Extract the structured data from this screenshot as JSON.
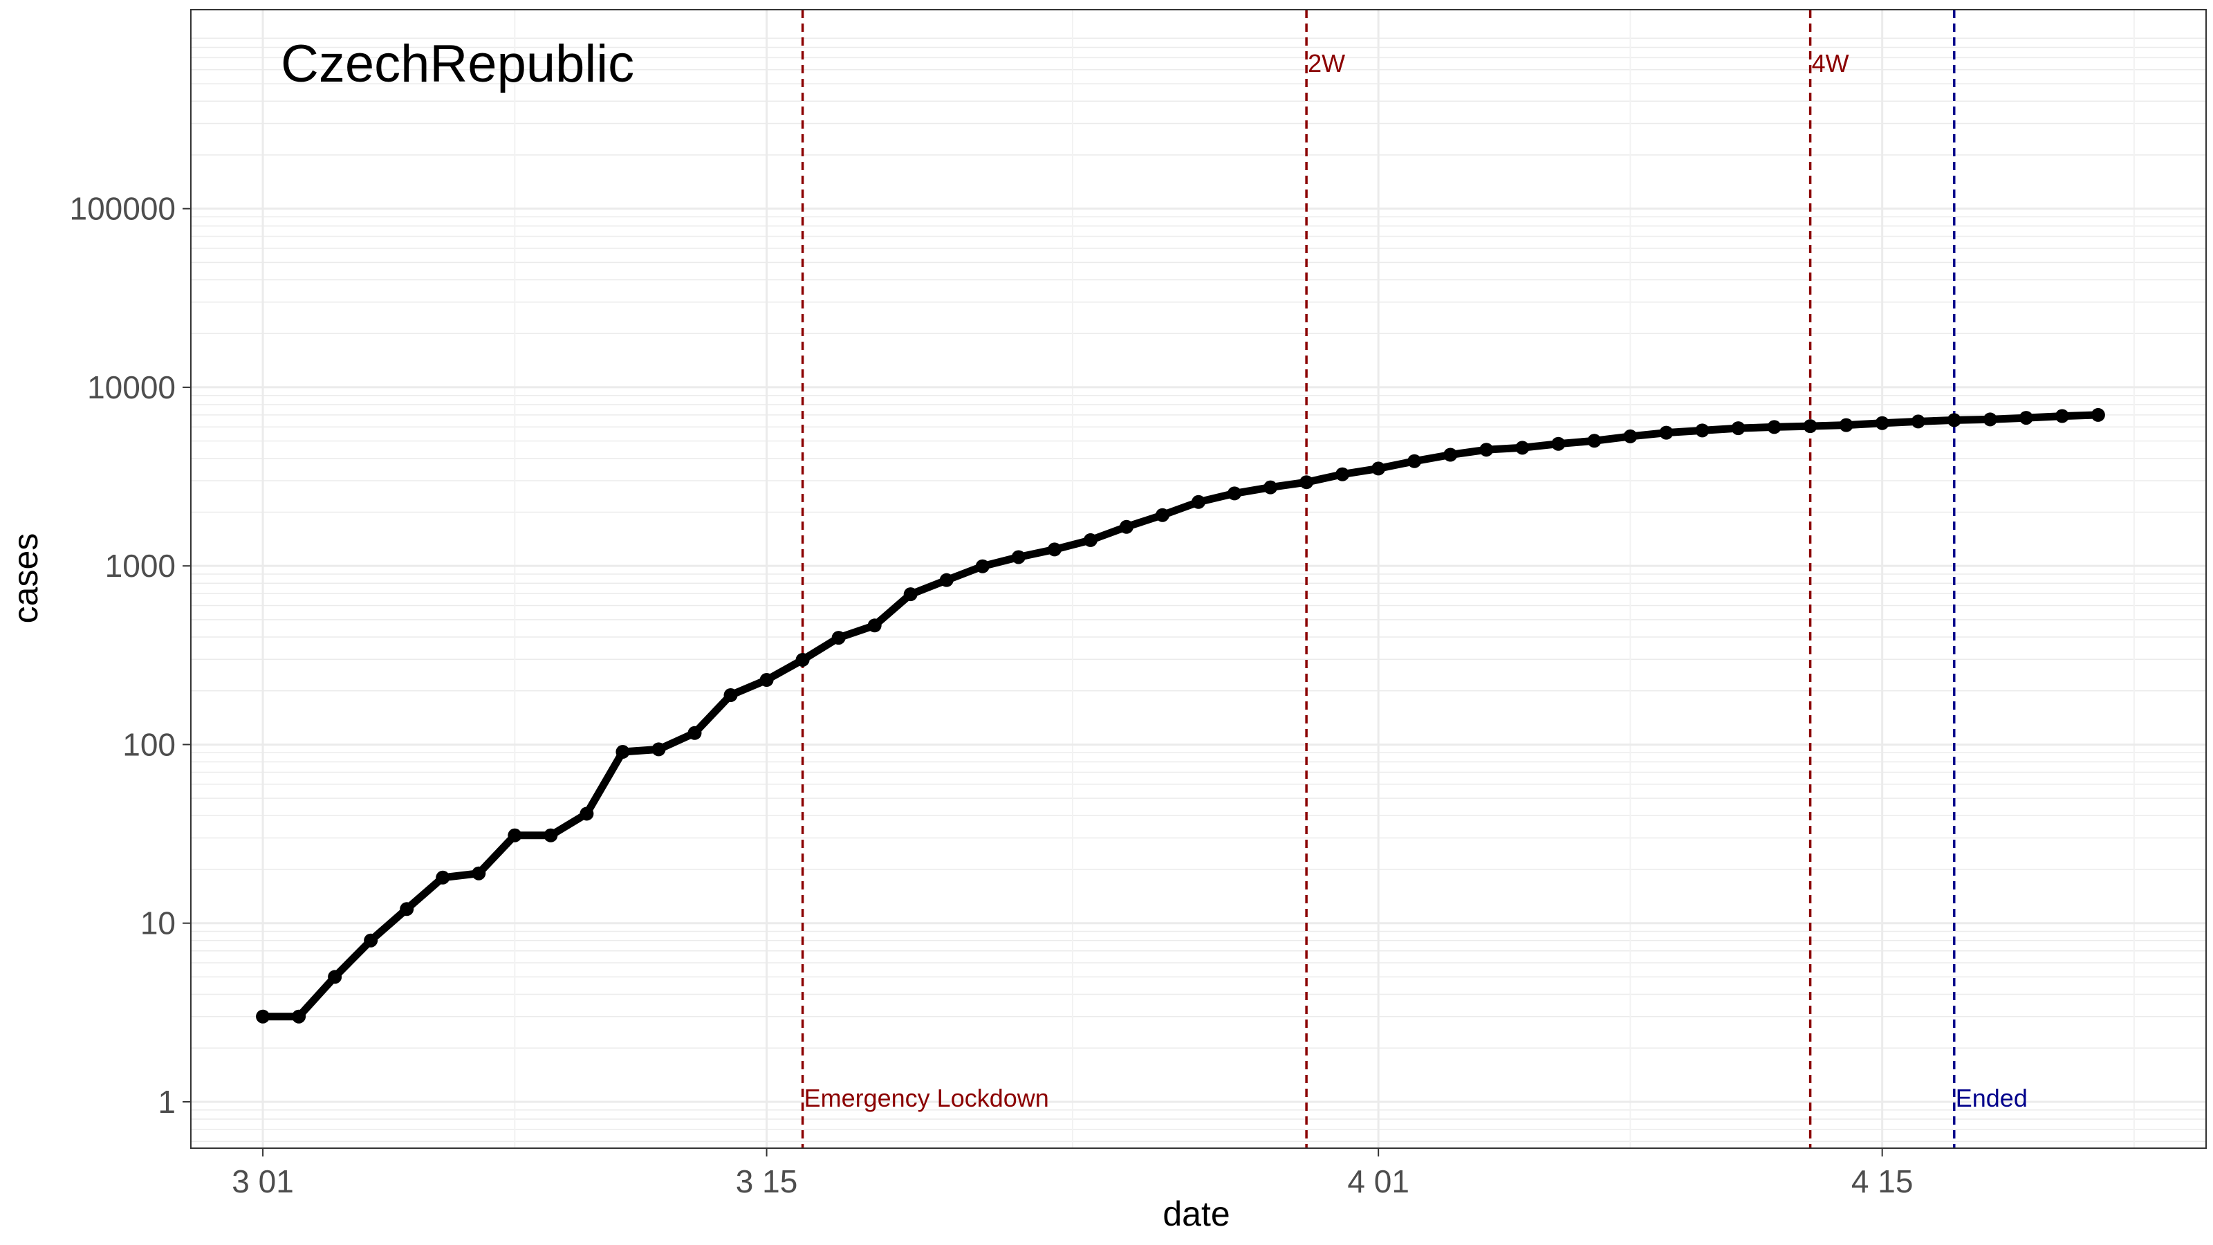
{
  "chart_data": {
    "type": "line",
    "title": "CzechRepublic",
    "xlabel": "date",
    "ylabel": "cases",
    "y_scale": "log10",
    "ylim": [
      0.55,
      1300000
    ],
    "xlim": [
      "2020-02-28",
      "2020-04-24"
    ],
    "grid": true,
    "x_ticks": [
      {
        "date": "2020-03-01",
        "label": "3 01"
      },
      {
        "date": "2020-03-15",
        "label": "3 15"
      },
      {
        "date": "2020-04-01",
        "label": "4 01"
      },
      {
        "date": "2020-04-15",
        "label": "4 15"
      }
    ],
    "y_ticks": [
      {
        "value": 1,
        "label": "1"
      },
      {
        "value": 10,
        "label": "10"
      },
      {
        "value": 100,
        "label": "100"
      },
      {
        "value": 1000,
        "label": "1000"
      },
      {
        "value": 10000,
        "label": "10000"
      },
      {
        "value": 100000,
        "label": "100000"
      }
    ],
    "series": [
      {
        "color": "#000000",
        "dates": [
          "2020-03-01",
          "2020-03-02",
          "2020-03-03",
          "2020-03-04",
          "2020-03-05",
          "2020-03-06",
          "2020-03-07",
          "2020-03-08",
          "2020-03-09",
          "2020-03-10",
          "2020-03-11",
          "2020-03-12",
          "2020-03-13",
          "2020-03-14",
          "2020-03-15",
          "2020-03-16",
          "2020-03-17",
          "2020-03-18",
          "2020-03-19",
          "2020-03-20",
          "2020-03-21",
          "2020-03-22",
          "2020-03-23",
          "2020-03-24",
          "2020-03-25",
          "2020-03-26",
          "2020-03-27",
          "2020-03-28",
          "2020-03-29",
          "2020-03-30",
          "2020-03-31",
          "2020-04-01",
          "2020-04-02",
          "2020-04-03",
          "2020-04-04",
          "2020-04-05",
          "2020-04-06",
          "2020-04-07",
          "2020-04-08",
          "2020-04-09",
          "2020-04-10",
          "2020-04-11",
          "2020-04-12",
          "2020-04-13",
          "2020-04-14",
          "2020-04-15",
          "2020-04-16",
          "2020-04-17",
          "2020-04-18",
          "2020-04-19",
          "2020-04-20",
          "2020-04-21"
        ],
        "values": [
          3,
          3,
          5,
          8,
          12,
          18,
          19,
          31,
          31,
          41,
          91,
          94,
          116,
          189,
          230,
          298,
          396,
          464,
          694,
          833,
          995,
          1120,
          1236,
          1394,
          1654,
          1925,
          2279,
          2546,
          2752,
          2941,
          3257,
          3508,
          3858,
          4190,
          4472,
          4587,
          4822,
          5017,
          5312,
          5569,
          5732,
          5902,
          5991,
          6059,
          6141,
          6303,
          6433,
          6549,
          6606,
          6746,
          6900,
          7000
        ]
      }
    ],
    "events": [
      {
        "date": "2020-03-16",
        "label": "Emergency Lockdown",
        "color": "#8b0000",
        "label_position": "bottom"
      },
      {
        "date": "2020-03-30",
        "label": "2W",
        "color": "#8b0000",
        "label_position": "top"
      },
      {
        "date": "2020-04-13",
        "label": "4W",
        "color": "#8b0000",
        "label_position": "top"
      },
      {
        "date": "2020-04-17",
        "label": "Ended",
        "color": "#00008b",
        "label_position": "bottom"
      }
    ]
  }
}
